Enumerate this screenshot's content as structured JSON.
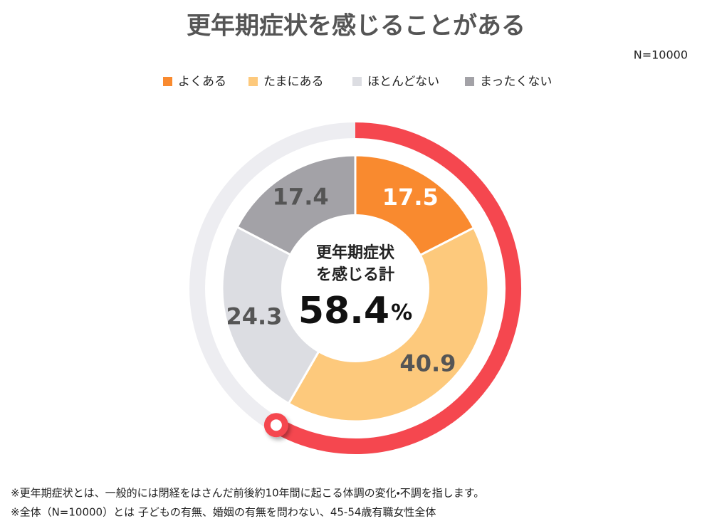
{
  "chart_data": {
    "type": "donut",
    "title": "更年期症状を感じることがある",
    "note": "N=10000",
    "categories": [
      "よくある",
      "たまにある",
      "ほとんどない",
      "まったくない"
    ],
    "values": [
      17.5,
      40.9,
      24.3,
      17.4
    ],
    "colors": [
      "#f98a2f",
      "#fdc97c",
      "#dcdde2",
      "#a3a2a7"
    ],
    "label_colors": [
      "#ffffff",
      "#555555",
      "#555555",
      "#555555"
    ],
    "center_text": [
      "更年期症状",
      "を感じる計"
    ],
    "center_value": 58.4,
    "center_unit": "%",
    "ring_color": "#f5474f",
    "ring_track_color": "#ededf1"
  },
  "footnotes": [
    "※更年期症状とは、一般的には閉経をはさんだ前後約10年間に起こる体調の変化・不調を指します。",
    "※全体（N=10000）とは 子どもの有無、婚姻の有無を問わない、45-54歳有職女性全体"
  ]
}
